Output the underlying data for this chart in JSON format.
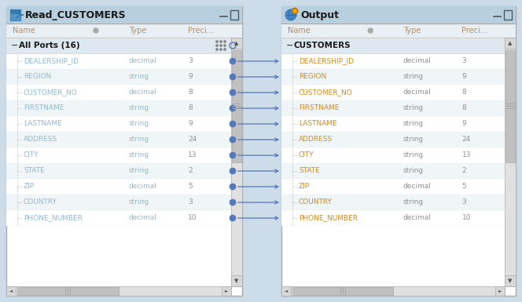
{
  "bg_color": "#ccdce8",
  "panel_bg": "#ffffff",
  "panel_header_bg": "#b8cfe0",
  "row_alt_bg": "#f0f5f8",
  "row_bg": "#ffffff",
  "group_header_bg": "#dde8f0",
  "title_color": "#1a1a1a",
  "header_text_color": "#b09070",
  "field_name_color_left": "#90b8d0",
  "field_type_color_left": "#90b8d0",
  "field_name_color_right": "#d08820",
  "field_type_color_right": "#909090",
  "preci_color": "#909090",
  "connector_color": "#5577bb",
  "left_title": "Read_CUSTOMERS",
  "right_title": "Output",
  "left_group": "All Ports (16)",
  "right_group": "CUSTOMERS",
  "fields": [
    [
      "DEALERSHIP_ID",
      "decimal",
      "3"
    ],
    [
      "REGION",
      "string",
      "9"
    ],
    [
      "CUSTOMER_NO",
      "decimal",
      "8"
    ],
    [
      "FIRSTNAME",
      "string",
      "8"
    ],
    [
      "LASTNAME",
      "string",
      "9"
    ],
    [
      "ADDRESS",
      "string",
      "24"
    ],
    [
      "CITY",
      "string",
      "13"
    ],
    [
      "STATE",
      "string",
      "2"
    ],
    [
      "ZIP",
      "decimal",
      "5"
    ],
    [
      "COUNTRY",
      "string",
      "3"
    ],
    [
      "PHONE_NUMBER",
      "decimal",
      "10"
    ]
  ]
}
